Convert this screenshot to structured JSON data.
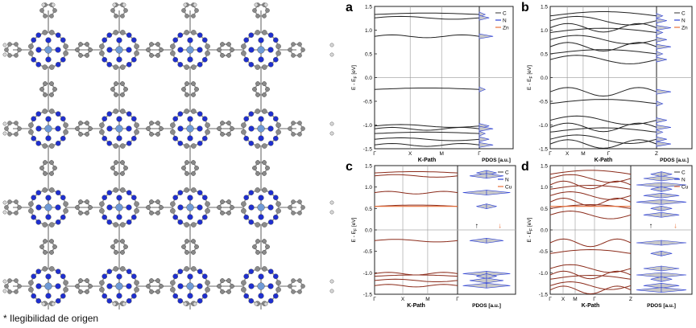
{
  "footnote": "* Ilegibilidad de origen",
  "molecule": {
    "grid_rows": 4,
    "grid_cols": 4,
    "atom_colors": {
      "carbon": "#8a8a8a",
      "nitrogen": "#1f2fcf",
      "metal": "#6f9ad6",
      "hydrogen": "#d8d8d8"
    }
  },
  "common": {
    "ylabel": "E - E",
    "ylabel_sub": "F",
    "ylabel_unit": " [eV]",
    "y_ticks": [
      "1.5",
      "1.0",
      "0.5",
      "0.0",
      "-0.5",
      "-1.0",
      "-1.5"
    ],
    "y_range": [
      -1.5,
      1.5
    ],
    "pdos_label": "PDOS [a.u.]",
    "kpath_label": "K-Path"
  },
  "panels": [
    {
      "letter": "a",
      "kticks": [
        "Γ",
        "X",
        "M",
        "Γ"
      ],
      "legend": [
        {
          "label": "C",
          "color": "#555555"
        },
        {
          "label": "N",
          "color": "#2b3fd6"
        },
        {
          "label": "Zn",
          "color": "#e8703a"
        }
      ],
      "spin": false,
      "bands": [
        1.33,
        1.26,
        0.87,
        -0.25,
        -1.02,
        -1.08,
        -1.18,
        -1.3,
        -1.42
      ],
      "line_color": "#222222"
    },
    {
      "letter": "b",
      "kticks": [
        "Γ",
        "X",
        "M",
        "Γ",
        "Z"
      ],
      "legend": [
        {
          "label": "C",
          "color": "#555555"
        },
        {
          "label": "N",
          "color": "#2b3fd6"
        },
        {
          "label": "Zn",
          "color": "#e8703a"
        }
      ],
      "spin": false,
      "bands": [
        1.3,
        1.2,
        1.05,
        0.95,
        0.8,
        0.65,
        0.5,
        0.38,
        -0.3,
        -0.55,
        -0.9,
        -1.05,
        -1.15,
        -1.3,
        -1.4
      ],
      "line_color": "#222222"
    },
    {
      "letter": "c",
      "kticks": [
        "Γ",
        "X",
        "M",
        "Γ"
      ],
      "legend": [
        {
          "label": "C",
          "color": "#555555"
        },
        {
          "label": "N",
          "color": "#2b3fd6"
        },
        {
          "label": "Cu",
          "color": "#e8703a"
        }
      ],
      "spin": true,
      "bands": [
        1.33,
        1.26,
        0.87,
        0.55,
        -0.25,
        -1.02,
        -1.08,
        -1.18,
        -1.3
      ],
      "line_color": "#8b2b1a"
    },
    {
      "letter": "d",
      "kticks": [
        "Γ",
        "X",
        "M",
        "Γ",
        "Z"
      ],
      "legend": [
        {
          "label": "C",
          "color": "#555555"
        },
        {
          "label": "N",
          "color": "#2b3fd6"
        },
        {
          "label": "Cu",
          "color": "#e8703a"
        }
      ],
      "spin": true,
      "bands": [
        1.3,
        1.2,
        1.05,
        0.95,
        0.8,
        0.65,
        0.5,
        0.35,
        -0.3,
        -0.55,
        -0.9,
        -1.05,
        -1.15,
        -1.3,
        -1.4
      ],
      "line_color": "#8b2b1a"
    }
  ]
}
